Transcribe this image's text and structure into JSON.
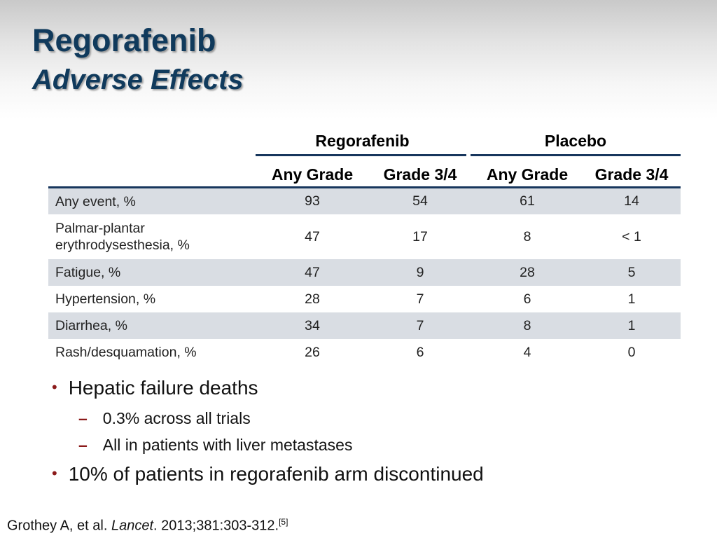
{
  "title": {
    "main": "Regorafenib",
    "sub": "Adverse Effects"
  },
  "table": {
    "groups": [
      "Regorafenib",
      "Placebo"
    ],
    "subheaders": [
      "Any Grade",
      "Grade 3/4",
      "Any Grade",
      "Grade 3/4"
    ],
    "rows": [
      {
        "label": "Any event, %",
        "values": [
          "93",
          "54",
          "61",
          "14"
        ]
      },
      {
        "label": "Palmar-plantar erythrodysesthesia, %",
        "values": [
          "47",
          "17",
          "8",
          "< 1"
        ]
      },
      {
        "label": "Fatigue, %",
        "values": [
          "47",
          "9",
          "28",
          "5"
        ]
      },
      {
        "label": "Hypertension, %",
        "values": [
          "28",
          "7",
          "6",
          "1"
        ]
      },
      {
        "label": "Diarrhea, %",
        "values": [
          "34",
          "7",
          "8",
          "1"
        ]
      },
      {
        "label": "Rash/desquamation, %",
        "values": [
          "26",
          "6",
          "4",
          "0"
        ]
      }
    ]
  },
  "bullets": [
    {
      "text": "Hepatic failure deaths",
      "subs": [
        "0.3% across all trials",
        "All in patients with liver metastases"
      ]
    },
    {
      "text": "10% of patients in regorafenib arm discontinued",
      "subs": []
    }
  ],
  "citation": {
    "authors": "Grothey A, et al. ",
    "journal": "Lancet",
    "details": ". 2013;381:303-312.",
    "ref": "[5]"
  },
  "colors": {
    "title": "#103a5c",
    "rule": "#17365d",
    "shade": "#d9dde3",
    "bullet_marker": "#8b1a1a"
  }
}
